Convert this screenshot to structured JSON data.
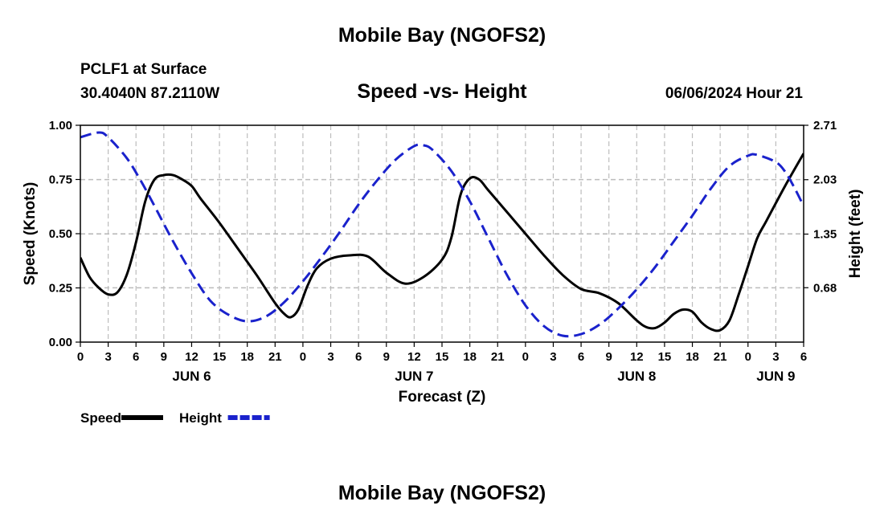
{
  "page": {
    "title": "Mobile Bay (NGOFS2)",
    "station": "PCLF1 at Surface",
    "location": "30.4040N  87.2110W",
    "subtitle": "Speed -vs- Height",
    "datetime": "06/06/2024 Hour 21",
    "footer_title": "Mobile Bay (NGOFS2)"
  },
  "chart_data": {
    "type": "line",
    "title": "Speed -vs- Height",
    "xlabel": "Forecast (Z)",
    "ylabel": "Speed (Knots)",
    "y2label": "Height (feet)",
    "x_unit": "hours from 06/06 00Z",
    "xlim": [
      0,
      78
    ],
    "ylim": [
      0,
      1.0
    ],
    "y2lim": [
      0.0,
      2.71
    ],
    "grid": true,
    "x_ticks": [
      {
        "x": 0,
        "label": "0"
      },
      {
        "x": 3,
        "label": "3"
      },
      {
        "x": 6,
        "label": "6"
      },
      {
        "x": 9,
        "label": "9"
      },
      {
        "x": 12,
        "label": "12"
      },
      {
        "x": 15,
        "label": "15"
      },
      {
        "x": 18,
        "label": "18"
      },
      {
        "x": 21,
        "label": "21"
      },
      {
        "x": 24,
        "label": "0"
      },
      {
        "x": 27,
        "label": "3"
      },
      {
        "x": 30,
        "label": "6"
      },
      {
        "x": 33,
        "label": "9"
      },
      {
        "x": 36,
        "label": "12"
      },
      {
        "x": 39,
        "label": "15"
      },
      {
        "x": 42,
        "label": "18"
      },
      {
        "x": 45,
        "label": "21"
      },
      {
        "x": 48,
        "label": "0"
      },
      {
        "x": 51,
        "label": "3"
      },
      {
        "x": 54,
        "label": "6"
      },
      {
        "x": 57,
        "label": "9"
      },
      {
        "x": 60,
        "label": "12"
      },
      {
        "x": 63,
        "label": "15"
      },
      {
        "x": 66,
        "label": "18"
      },
      {
        "x": 69,
        "label": "21"
      },
      {
        "x": 72,
        "label": "0"
      },
      {
        "x": 75,
        "label": "3"
      },
      {
        "x": 78,
        "label": "6"
      }
    ],
    "day_labels": [
      {
        "x": 12,
        "label": "JUN 6"
      },
      {
        "x": 36,
        "label": "JUN 7"
      },
      {
        "x": 60,
        "label": "JUN 8"
      },
      {
        "x": 75,
        "label": "JUN 9"
      }
    ],
    "y_ticks": [
      {
        "v": 0.0,
        "label": "0.00"
      },
      {
        "v": 0.25,
        "label": "0.25"
      },
      {
        "v": 0.5,
        "label": "0.50"
      },
      {
        "v": 0.75,
        "label": "0.75"
      },
      {
        "v": 1.0,
        "label": "1.00"
      }
    ],
    "y2_ticks": [
      {
        "v": 0.68,
        "label": "0.68"
      },
      {
        "v": 1.35,
        "label": "1.35"
      },
      {
        "v": 2.03,
        "label": "2.03"
      },
      {
        "v": 2.71,
        "label": "2.71"
      }
    ],
    "series": [
      {
        "name": "Speed",
        "axis": "left",
        "color": "#000000",
        "style": "solid",
        "x": [
          0,
          1,
          2,
          3,
          4,
          5,
          6,
          7,
          8,
          9,
          10,
          11,
          12,
          13,
          15,
          17,
          19,
          21,
          22,
          22.7,
          23.5,
          24.5,
          25.5,
          27,
          29,
          31,
          33,
          35,
          37,
          39,
          40,
          41,
          42,
          43,
          44,
          46,
          48,
          50,
          52,
          54,
          56,
          58,
          60,
          61,
          62,
          63,
          64,
          65,
          66,
          67,
          68,
          69,
          70,
          71,
          72,
          73,
          74,
          76,
          78
        ],
        "y": [
          0.39,
          0.3,
          0.25,
          0.22,
          0.23,
          0.31,
          0.46,
          0.65,
          0.75,
          0.77,
          0.77,
          0.75,
          0.72,
          0.66,
          0.55,
          0.43,
          0.31,
          0.18,
          0.13,
          0.115,
          0.15,
          0.26,
          0.34,
          0.385,
          0.4,
          0.395,
          0.32,
          0.27,
          0.3,
          0.38,
          0.48,
          0.68,
          0.755,
          0.75,
          0.7,
          0.6,
          0.5,
          0.4,
          0.31,
          0.245,
          0.225,
          0.18,
          0.1,
          0.07,
          0.065,
          0.09,
          0.13,
          0.15,
          0.14,
          0.09,
          0.06,
          0.055,
          0.1,
          0.22,
          0.35,
          0.48,
          0.56,
          0.72,
          0.87
        ]
      },
      {
        "name": "Height",
        "axis": "right",
        "color": "#1a22cc",
        "style": "dashed",
        "x": [
          0,
          2,
          3,
          5,
          6.5,
          8,
          10,
          12,
          14,
          16,
          18,
          20,
          22,
          24,
          26,
          28,
          30,
          32,
          34,
          36,
          37,
          38,
          40,
          42,
          44,
          46,
          48,
          50,
          52,
          54,
          56,
          58,
          60,
          62,
          64,
          66,
          68,
          70,
          72,
          73,
          75,
          76,
          77,
          78
        ],
        "y": [
          2.56,
          2.62,
          2.56,
          2.3,
          2.02,
          1.7,
          1.26,
          0.86,
          0.52,
          0.34,
          0.26,
          0.32,
          0.5,
          0.76,
          1.06,
          1.38,
          1.72,
          2.02,
          2.28,
          2.45,
          2.46,
          2.4,
          2.14,
          1.76,
          1.3,
          0.84,
          0.46,
          0.2,
          0.08,
          0.1,
          0.22,
          0.42,
          0.66,
          0.94,
          1.26,
          1.58,
          1.92,
          2.2,
          2.33,
          2.34,
          2.25,
          2.13,
          1.93,
          1.7
        ]
      }
    ],
    "legend": [
      {
        "name": "Speed",
        "color": "#000000",
        "style": "solid"
      },
      {
        "name": "Height",
        "color": "#1a22cc",
        "style": "dashed"
      }
    ]
  }
}
